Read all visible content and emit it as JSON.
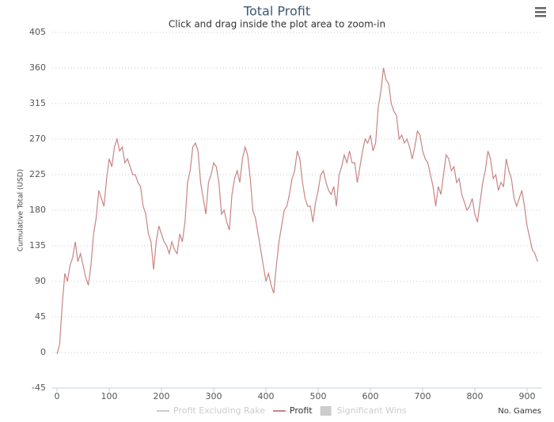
{
  "chart_data": {
    "type": "line",
    "title": "Total Profit",
    "subtitle": "Click and drag inside the plot area to zoom-in",
    "y_label": "Cumulative Total (USD)",
    "x_label": "No. Games",
    "xlim": [
      0,
      922
    ],
    "ylim": [
      -45,
      405
    ],
    "xticks": [
      0,
      100,
      200,
      300,
      400,
      500,
      600,
      700,
      800,
      900
    ],
    "yticks": [
      -45,
      0,
      45,
      90,
      135,
      180,
      225,
      270,
      315,
      360,
      405
    ],
    "grid": true,
    "x": [
      0,
      5,
      10,
      15,
      20,
      25,
      30,
      35,
      40,
      45,
      50,
      55,
      60,
      65,
      70,
      75,
      80,
      85,
      90,
      95,
      100,
      105,
      110,
      115,
      120,
      125,
      130,
      135,
      140,
      145,
      150,
      155,
      160,
      165,
      170,
      175,
      180,
      185,
      190,
      195,
      200,
      205,
      210,
      215,
      220,
      225,
      230,
      235,
      240,
      245,
      250,
      255,
      260,
      265,
      270,
      275,
      280,
      285,
      290,
      295,
      300,
      305,
      310,
      315,
      320,
      325,
      330,
      335,
      340,
      345,
      350,
      355,
      360,
      365,
      370,
      375,
      380,
      385,
      390,
      395,
      400,
      405,
      410,
      415,
      420,
      425,
      430,
      435,
      440,
      445,
      450,
      455,
      460,
      465,
      470,
      475,
      480,
      485,
      490,
      495,
      500,
      505,
      510,
      515,
      520,
      525,
      530,
      535,
      540,
      545,
      550,
      555,
      560,
      565,
      570,
      575,
      580,
      585,
      590,
      595,
      600,
      605,
      610,
      615,
      620,
      625,
      630,
      635,
      640,
      645,
      650,
      655,
      660,
      665,
      670,
      675,
      680,
      685,
      690,
      695,
      700,
      705,
      710,
      715,
      720,
      725,
      730,
      735,
      740,
      745,
      750,
      755,
      760,
      765,
      770,
      775,
      780,
      785,
      790,
      795,
      800,
      805,
      810,
      815,
      820,
      825,
      830,
      835,
      840,
      845,
      850,
      855,
      860,
      865,
      870,
      875,
      880,
      885,
      890,
      895,
      900,
      905,
      910,
      915,
      920
    ],
    "series": [
      {
        "name": "Profit Excluding Rake",
        "color": "#cccccc",
        "hidden": true,
        "symbol": "line"
      },
      {
        "name": "Profit",
        "color": "#c98585",
        "symbol": "line",
        "values": [
          -2,
          10,
          60,
          100,
          90,
          110,
          120,
          140,
          115,
          125,
          110,
          95,
          85,
          110,
          150,
          170,
          205,
          195,
          185,
          220,
          245,
          235,
          260,
          270,
          255,
          260,
          240,
          245,
          235,
          225,
          225,
          215,
          210,
          185,
          175,
          150,
          140,
          105,
          140,
          160,
          150,
          140,
          135,
          125,
          140,
          130,
          125,
          150,
          140,
          165,
          215,
          230,
          260,
          265,
          255,
          215,
          195,
          175,
          215,
          225,
          240,
          235,
          215,
          175,
          180,
          165,
          155,
          200,
          220,
          230,
          215,
          245,
          260,
          250,
          220,
          180,
          170,
          150,
          130,
          110,
          90,
          100,
          85,
          75,
          110,
          140,
          160,
          180,
          185,
          200,
          220,
          230,
          255,
          245,
          215,
          195,
          185,
          185,
          165,
          190,
          205,
          225,
          230,
          215,
          205,
          200,
          210,
          185,
          225,
          235,
          250,
          240,
          255,
          240,
          240,
          215,
          235,
          255,
          270,
          265,
          275,
          255,
          265,
          310,
          330,
          360,
          345,
          340,
          315,
          305,
          300,
          270,
          275,
          265,
          270,
          260,
          245,
          260,
          280,
          275,
          255,
          245,
          240,
          225,
          210,
          185,
          210,
          200,
          225,
          250,
          245,
          230,
          235,
          215,
          220,
          200,
          190,
          180,
          185,
          195,
          175,
          165,
          190,
          215,
          230,
          255,
          245,
          220,
          225,
          205,
          215,
          210,
          245,
          230,
          220,
          195,
          185,
          195,
          205,
          185,
          160,
          145,
          130,
          125,
          115
        ]
      },
      {
        "name": "Significant Wins",
        "color": "#cccccc",
        "hidden": true,
        "symbol": "box"
      }
    ]
  }
}
